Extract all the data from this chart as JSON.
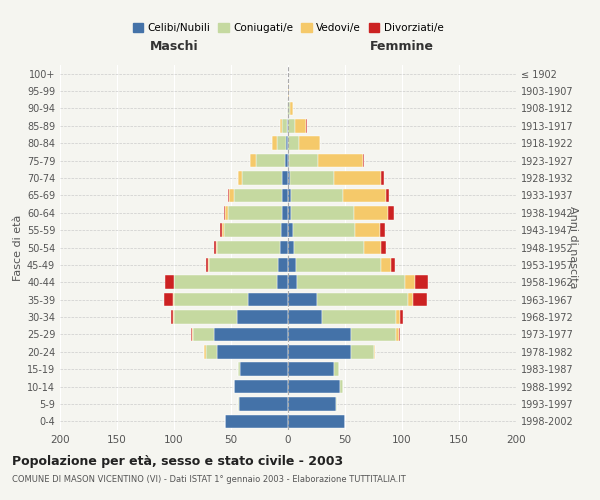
{
  "age_groups": [
    "0-4",
    "5-9",
    "10-14",
    "15-19",
    "20-24",
    "25-29",
    "30-34",
    "35-39",
    "40-44",
    "45-49",
    "50-54",
    "55-59",
    "60-64",
    "65-69",
    "70-74",
    "75-79",
    "80-84",
    "85-89",
    "90-94",
    "95-99",
    "100+"
  ],
  "birth_years": [
    "1998-2002",
    "1993-1997",
    "1988-1992",
    "1983-1987",
    "1978-1982",
    "1973-1977",
    "1968-1972",
    "1963-1967",
    "1958-1962",
    "1953-1957",
    "1948-1952",
    "1943-1947",
    "1938-1942",
    "1933-1937",
    "1928-1932",
    "1923-1927",
    "1918-1922",
    "1913-1917",
    "1908-1912",
    "1903-1907",
    "≤ 1902"
  ],
  "maschi": {
    "celibi": [
      55,
      43,
      47,
      42,
      62,
      65,
      45,
      35,
      10,
      9,
      7,
      6,
      5,
      5,
      5,
      3,
      2,
      1,
      0,
      0,
      0
    ],
    "coniugati": [
      0,
      1,
      0,
      2,
      10,
      18,
      55,
      65,
      90,
      60,
      55,
      50,
      48,
      42,
      35,
      25,
      8,
      4,
      1,
      0,
      0
    ],
    "vedovi": [
      0,
      0,
      0,
      0,
      2,
      1,
      1,
      1,
      0,
      1,
      1,
      2,
      2,
      5,
      4,
      5,
      4,
      2,
      0,
      0,
      0
    ],
    "divorziati": [
      0,
      0,
      0,
      0,
      0,
      1,
      2,
      8,
      8,
      2,
      2,
      2,
      1,
      1,
      0,
      0,
      0,
      0,
      0,
      0,
      0
    ]
  },
  "femmine": {
    "nubili": [
      50,
      42,
      46,
      40,
      55,
      55,
      30,
      25,
      8,
      7,
      5,
      4,
      3,
      3,
      2,
      1,
      0,
      0,
      0,
      0,
      0
    ],
    "coniugate": [
      0,
      1,
      2,
      5,
      20,
      40,
      65,
      80,
      95,
      75,
      62,
      55,
      55,
      45,
      38,
      25,
      10,
      6,
      2,
      0,
      0
    ],
    "vedove": [
      0,
      0,
      0,
      0,
      1,
      2,
      3,
      5,
      8,
      8,
      15,
      22,
      30,
      38,
      42,
      40,
      18,
      10,
      2,
      1,
      0
    ],
    "divorziate": [
      0,
      0,
      0,
      0,
      0,
      1,
      3,
      12,
      12,
      4,
      4,
      4,
      5,
      3,
      2,
      1,
      0,
      1,
      0,
      0,
      0
    ]
  },
  "colors": {
    "celibi": "#4472a8",
    "coniugati": "#c5d9a0",
    "vedovi": "#f5c96a",
    "divorziati": "#cc2222"
  },
  "legend_labels": [
    "Celibi/Nubili",
    "Coniugati/e",
    "Vedovi/e",
    "Divorziati/e"
  ],
  "title": "Popolazione per età, sesso e stato civile - 2003",
  "subtitle": "COMUNE DI MASON VICENTINO (VI) - Dati ISTAT 1° gennaio 2003 - Elaborazione TUTTITALIA.IT",
  "xlabel_left": "Maschi",
  "xlabel_right": "Femmine",
  "ylabel_left": "Fasce di età",
  "ylabel_right": "Anni di nascita",
  "xlim": 200,
  "background_color": "#f5f5f0"
}
